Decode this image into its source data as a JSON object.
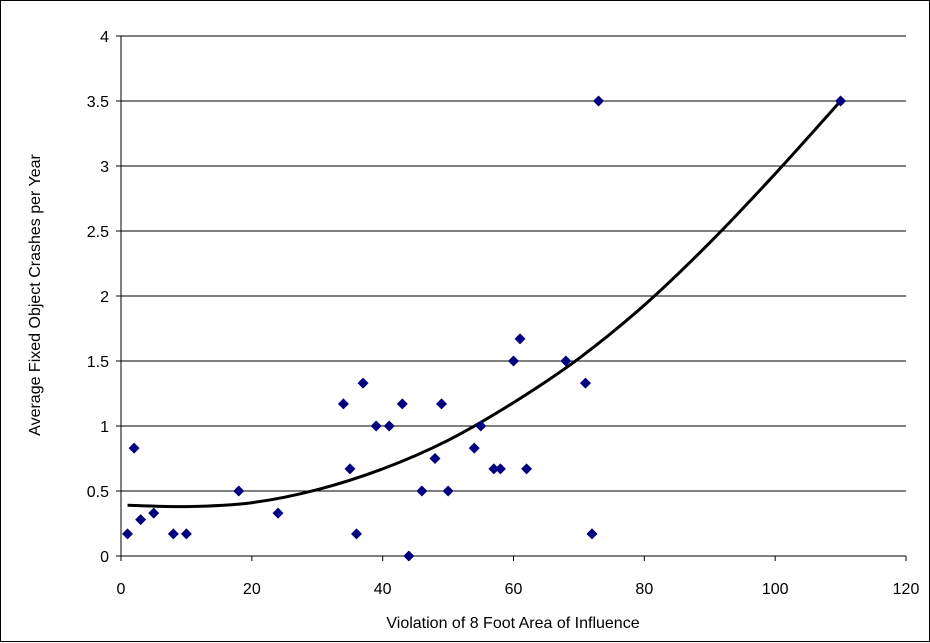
{
  "chart_data": {
    "type": "scatter",
    "title": "",
    "xlabel": "Violation of 8 Foot Area of Influence",
    "ylabel": "Average Fixed Object Crashes per Year",
    "xlim": [
      0,
      120
    ],
    "ylim": [
      0,
      4
    ],
    "x_ticks": [
      "0",
      "20",
      "40",
      "60",
      "80",
      "100",
      "120"
    ],
    "y_ticks": [
      "0",
      "0.5",
      "1",
      "1.5",
      "2",
      "2.5",
      "3",
      "3.5",
      "4"
    ],
    "grid": "horizontal",
    "legend": "none",
    "marker": "diamond",
    "colors": {
      "marker": "#000080",
      "trendline": "#000000",
      "grid": "#000000"
    },
    "points": [
      {
        "x": 1,
        "y": 0.17
      },
      {
        "x": 2,
        "y": 0.83
      },
      {
        "x": 3,
        "y": 0.28
      },
      {
        "x": 5,
        "y": 0.33
      },
      {
        "x": 8,
        "y": 0.17
      },
      {
        "x": 10,
        "y": 0.17
      },
      {
        "x": 18,
        "y": 0.5
      },
      {
        "x": 24,
        "y": 0.33
      },
      {
        "x": 34,
        "y": 1.17
      },
      {
        "x": 35,
        "y": 0.67
      },
      {
        "x": 36,
        "y": 0.17
      },
      {
        "x": 37,
        "y": 1.33
      },
      {
        "x": 39,
        "y": 1.0
      },
      {
        "x": 41,
        "y": 1.0
      },
      {
        "x": 43,
        "y": 1.17
      },
      {
        "x": 44,
        "y": 0.0
      },
      {
        "x": 46,
        "y": 0.5
      },
      {
        "x": 48,
        "y": 0.75
      },
      {
        "x": 49,
        "y": 1.17
      },
      {
        "x": 50,
        "y": 0.5
      },
      {
        "x": 54,
        "y": 0.83
      },
      {
        "x": 55,
        "y": 1.0
      },
      {
        "x": 57,
        "y": 0.67
      },
      {
        "x": 58,
        "y": 0.67
      },
      {
        "x": 60,
        "y": 1.5
      },
      {
        "x": 61,
        "y": 1.67
      },
      {
        "x": 62,
        "y": 0.67
      },
      {
        "x": 68,
        "y": 1.5
      },
      {
        "x": 71,
        "y": 1.33
      },
      {
        "x": 72,
        "y": 0.17
      },
      {
        "x": 73,
        "y": 3.5
      },
      {
        "x": 110,
        "y": 3.5
      }
    ],
    "trendline": {
      "type": "polynomial",
      "x": [
        1,
        10,
        20,
        30,
        40,
        50,
        60,
        70,
        80,
        90,
        100,
        110
      ],
      "y": [
        0.39,
        0.38,
        0.41,
        0.51,
        0.67,
        0.89,
        1.18,
        1.52,
        1.93,
        2.41,
        2.94,
        3.5
      ]
    }
  }
}
